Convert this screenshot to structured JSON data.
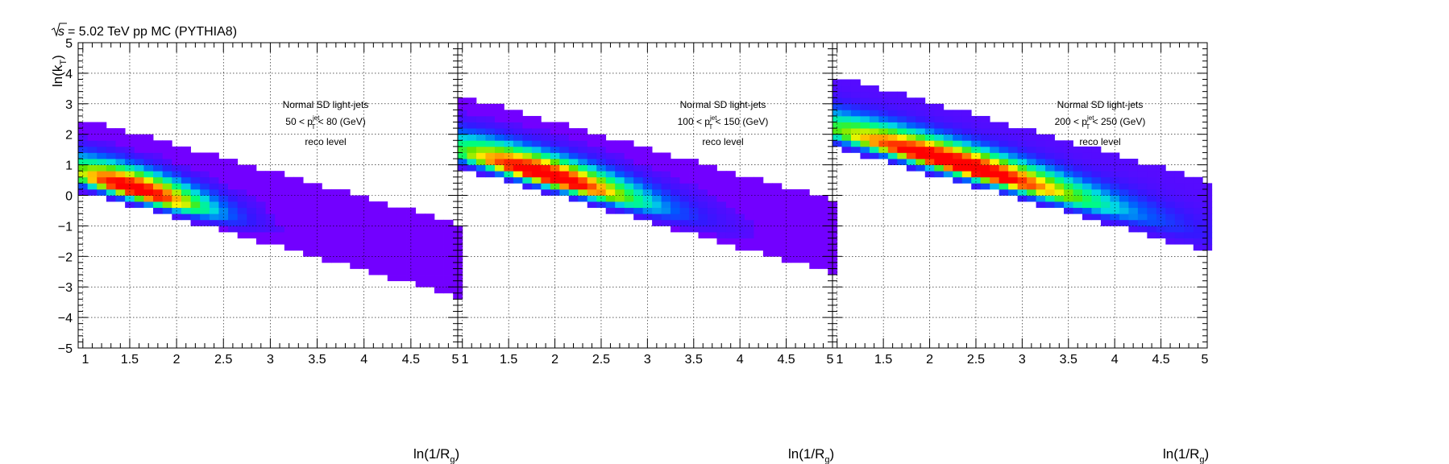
{
  "figure": {
    "title_energy": "= 5.02 TeV pp MC (PYTHIA8)",
    "title_sqrt": "√s",
    "ylabel": "ln(k_T)",
    "xlabel": "ln(1/R_g)",
    "xticks": [
      "1",
      "1.5",
      "2",
      "2.5",
      "3",
      "3.5",
      "4",
      "4.5",
      "5"
    ],
    "yticks": [
      "−5",
      "−4",
      "−3",
      "−2",
      "−1",
      "0",
      "1",
      "2",
      "3",
      "4",
      "5"
    ]
  },
  "chart_data": [
    {
      "type": "heatmap",
      "panel": 1,
      "xlabel": "ln(1/R_g)",
      "ylabel": "ln(k_T)",
      "xlim": [
        0.95,
        5.0
      ],
      "ylim": [
        -5,
        5
      ],
      "bin_width": [
        0.1,
        0.2
      ],
      "annotation": {
        "line1": "Normal SD light-jets",
        "line2_pre": "50 < p",
        "line2_post": " < 80 (GeV)",
        "sub": "T",
        "sup": "jet",
        "line3": "reco level"
      },
      "ridge": {
        "k_at_1": 0.65,
        "slope": -0.85,
        "upper_width": 1.85,
        "lower_width": 0.55,
        "peak_x": 1.55,
        "peak_sigma": 0.45,
        "tail": 0.03
      }
    },
    {
      "type": "heatmap",
      "panel": 2,
      "xlabel": "ln(1/R_g)",
      "ylabel": "ln(k_T)",
      "xlim": [
        0.95,
        5.0
      ],
      "ylim": [
        -5,
        5
      ],
      "bin_width": [
        0.1,
        0.2
      ],
      "annotation": {
        "line1": "Normal SD light-jets",
        "line2_pre": "100 < p",
        "line2_post": " < 150 (GeV)",
        "sub": "T",
        "sup": "jet",
        "line3": "reco level"
      },
      "ridge": {
        "k_at_1": 1.4,
        "slope": -0.85,
        "upper_width": 1.85,
        "lower_width": 0.55,
        "peak_x": 1.9,
        "peak_sigma": 0.6,
        "tail": 0.05
      }
    },
    {
      "type": "heatmap",
      "panel": 3,
      "xlabel": "ln(1/R_g)",
      "ylabel": "ln(k_T)",
      "xlim": [
        0.95,
        5.0
      ],
      "ylim": [
        -5,
        5
      ],
      "bin_width": [
        0.1,
        0.2
      ],
      "annotation": {
        "line1": "Normal SD light-jets",
        "line2_pre": "200 < p",
        "line2_post": " < 250 (GeV)",
        "sub": "T",
        "sup": "jet",
        "line3": "reco level"
      },
      "ridge": {
        "k_at_1": 2.1,
        "slope": -0.85,
        "upper_width": 1.8,
        "lower_width": 0.55,
        "peak_x": 2.3,
        "peak_sigma": 0.85,
        "tail": 0.08
      }
    }
  ]
}
